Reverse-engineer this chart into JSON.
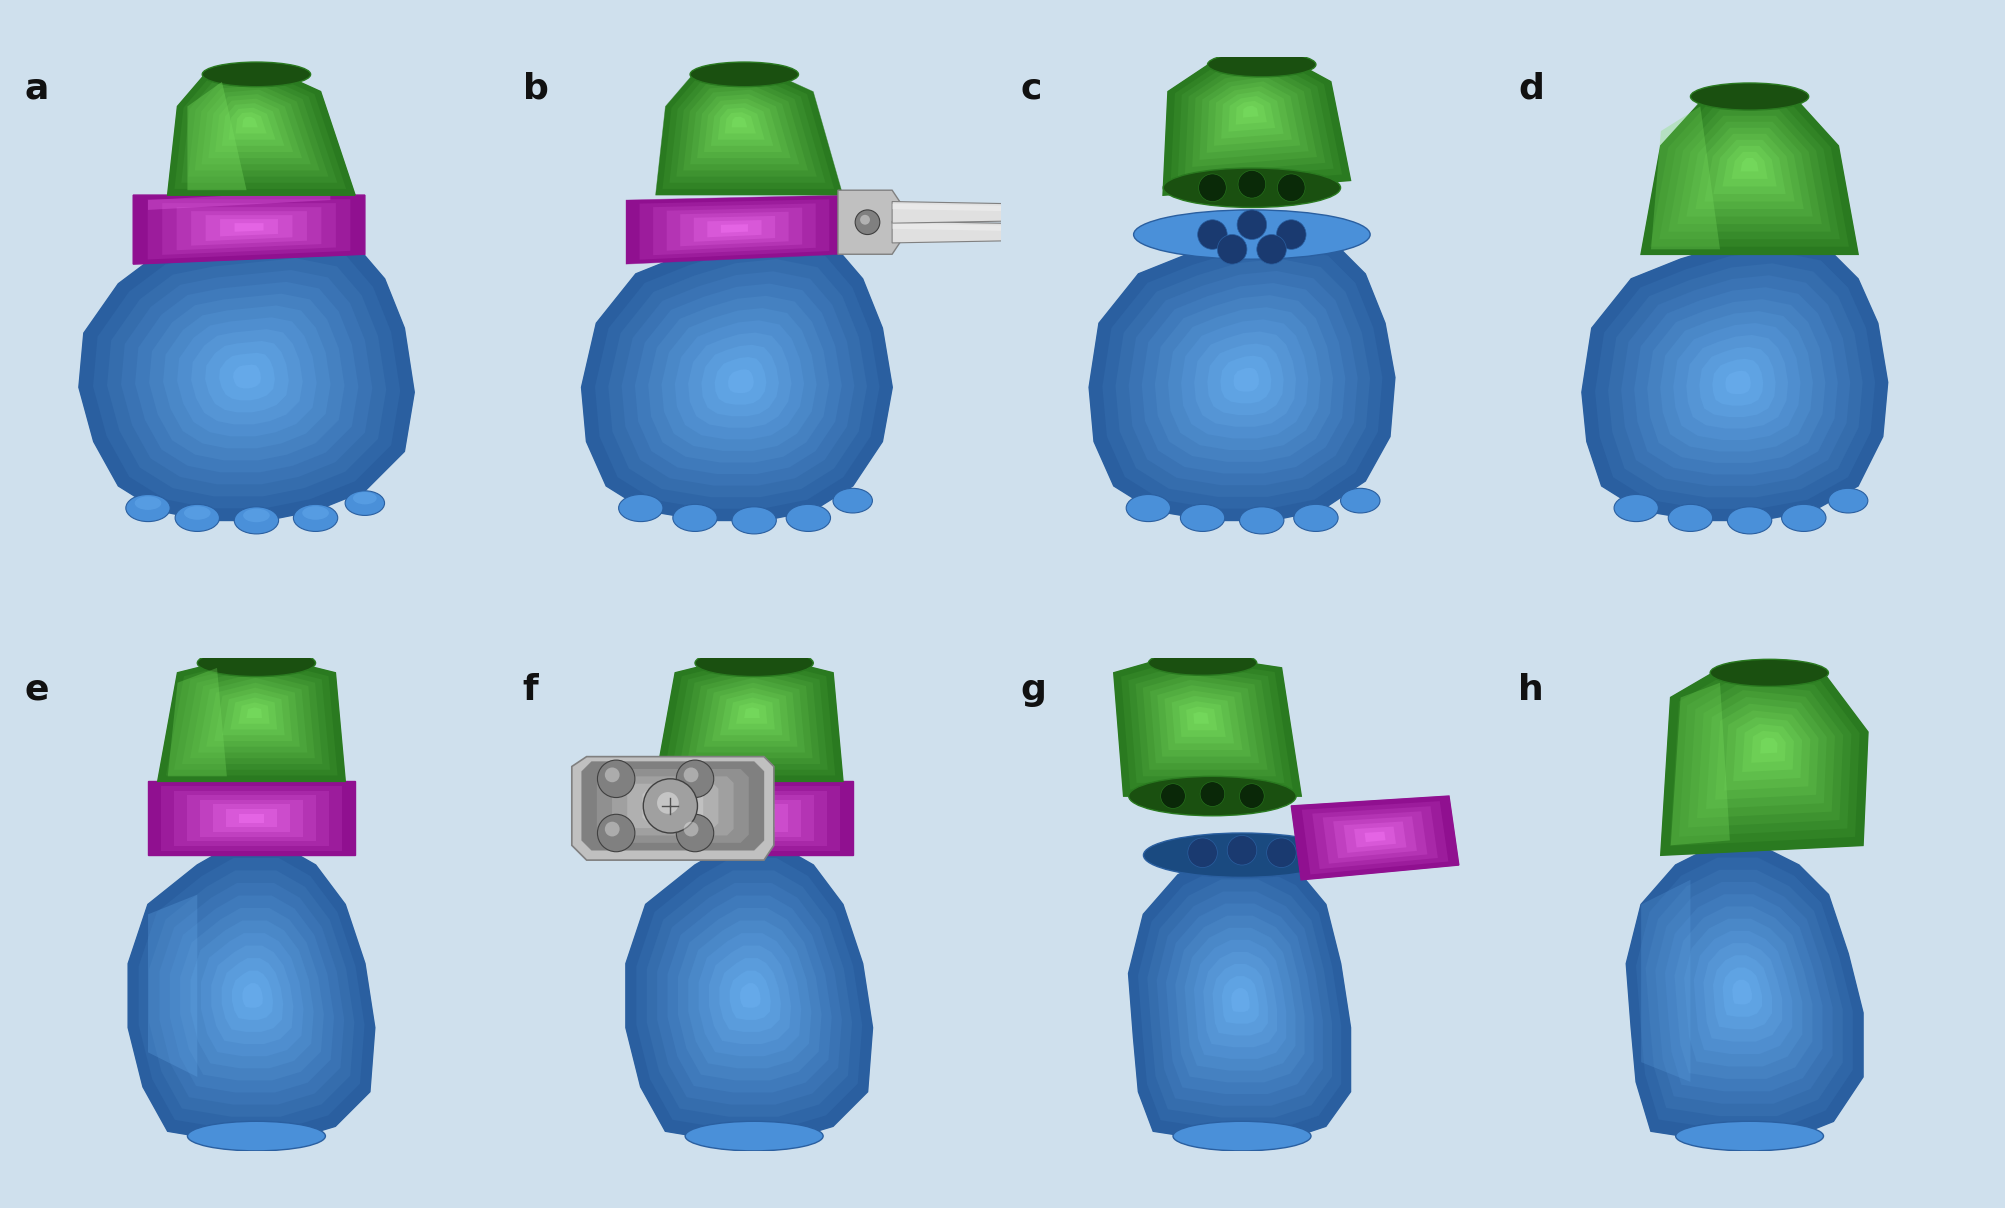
{
  "background_color": "#cfe0ed",
  "panel_labels": [
    "a",
    "b",
    "c",
    "d",
    "e",
    "f",
    "g",
    "h"
  ],
  "label_fontsize": 26,
  "label_color": "#111111",
  "label_weight": "bold",
  "figsize": [
    20.06,
    12.08
  ],
  "dpi": 100,
  "bone_blue": "#4a90d9",
  "bone_blue_dark": "#2a5fa0",
  "bone_blue_light": "#6ab0f0",
  "bone_blue_shadow": "#1a3a70",
  "bone_green": "#4ab840",
  "bone_green_dark": "#2a7a20",
  "bone_green_light": "#7ae060",
  "bone_green_inner": "#1a5010",
  "bone_magenta": "#d040d0",
  "bone_magenta_dark": "#901090",
  "bone_magenta_light": "#f070f0",
  "bone_gray": "#c0c0c0",
  "bone_gray_dark": "#808080",
  "bone_gray_light": "#e0e0e0"
}
